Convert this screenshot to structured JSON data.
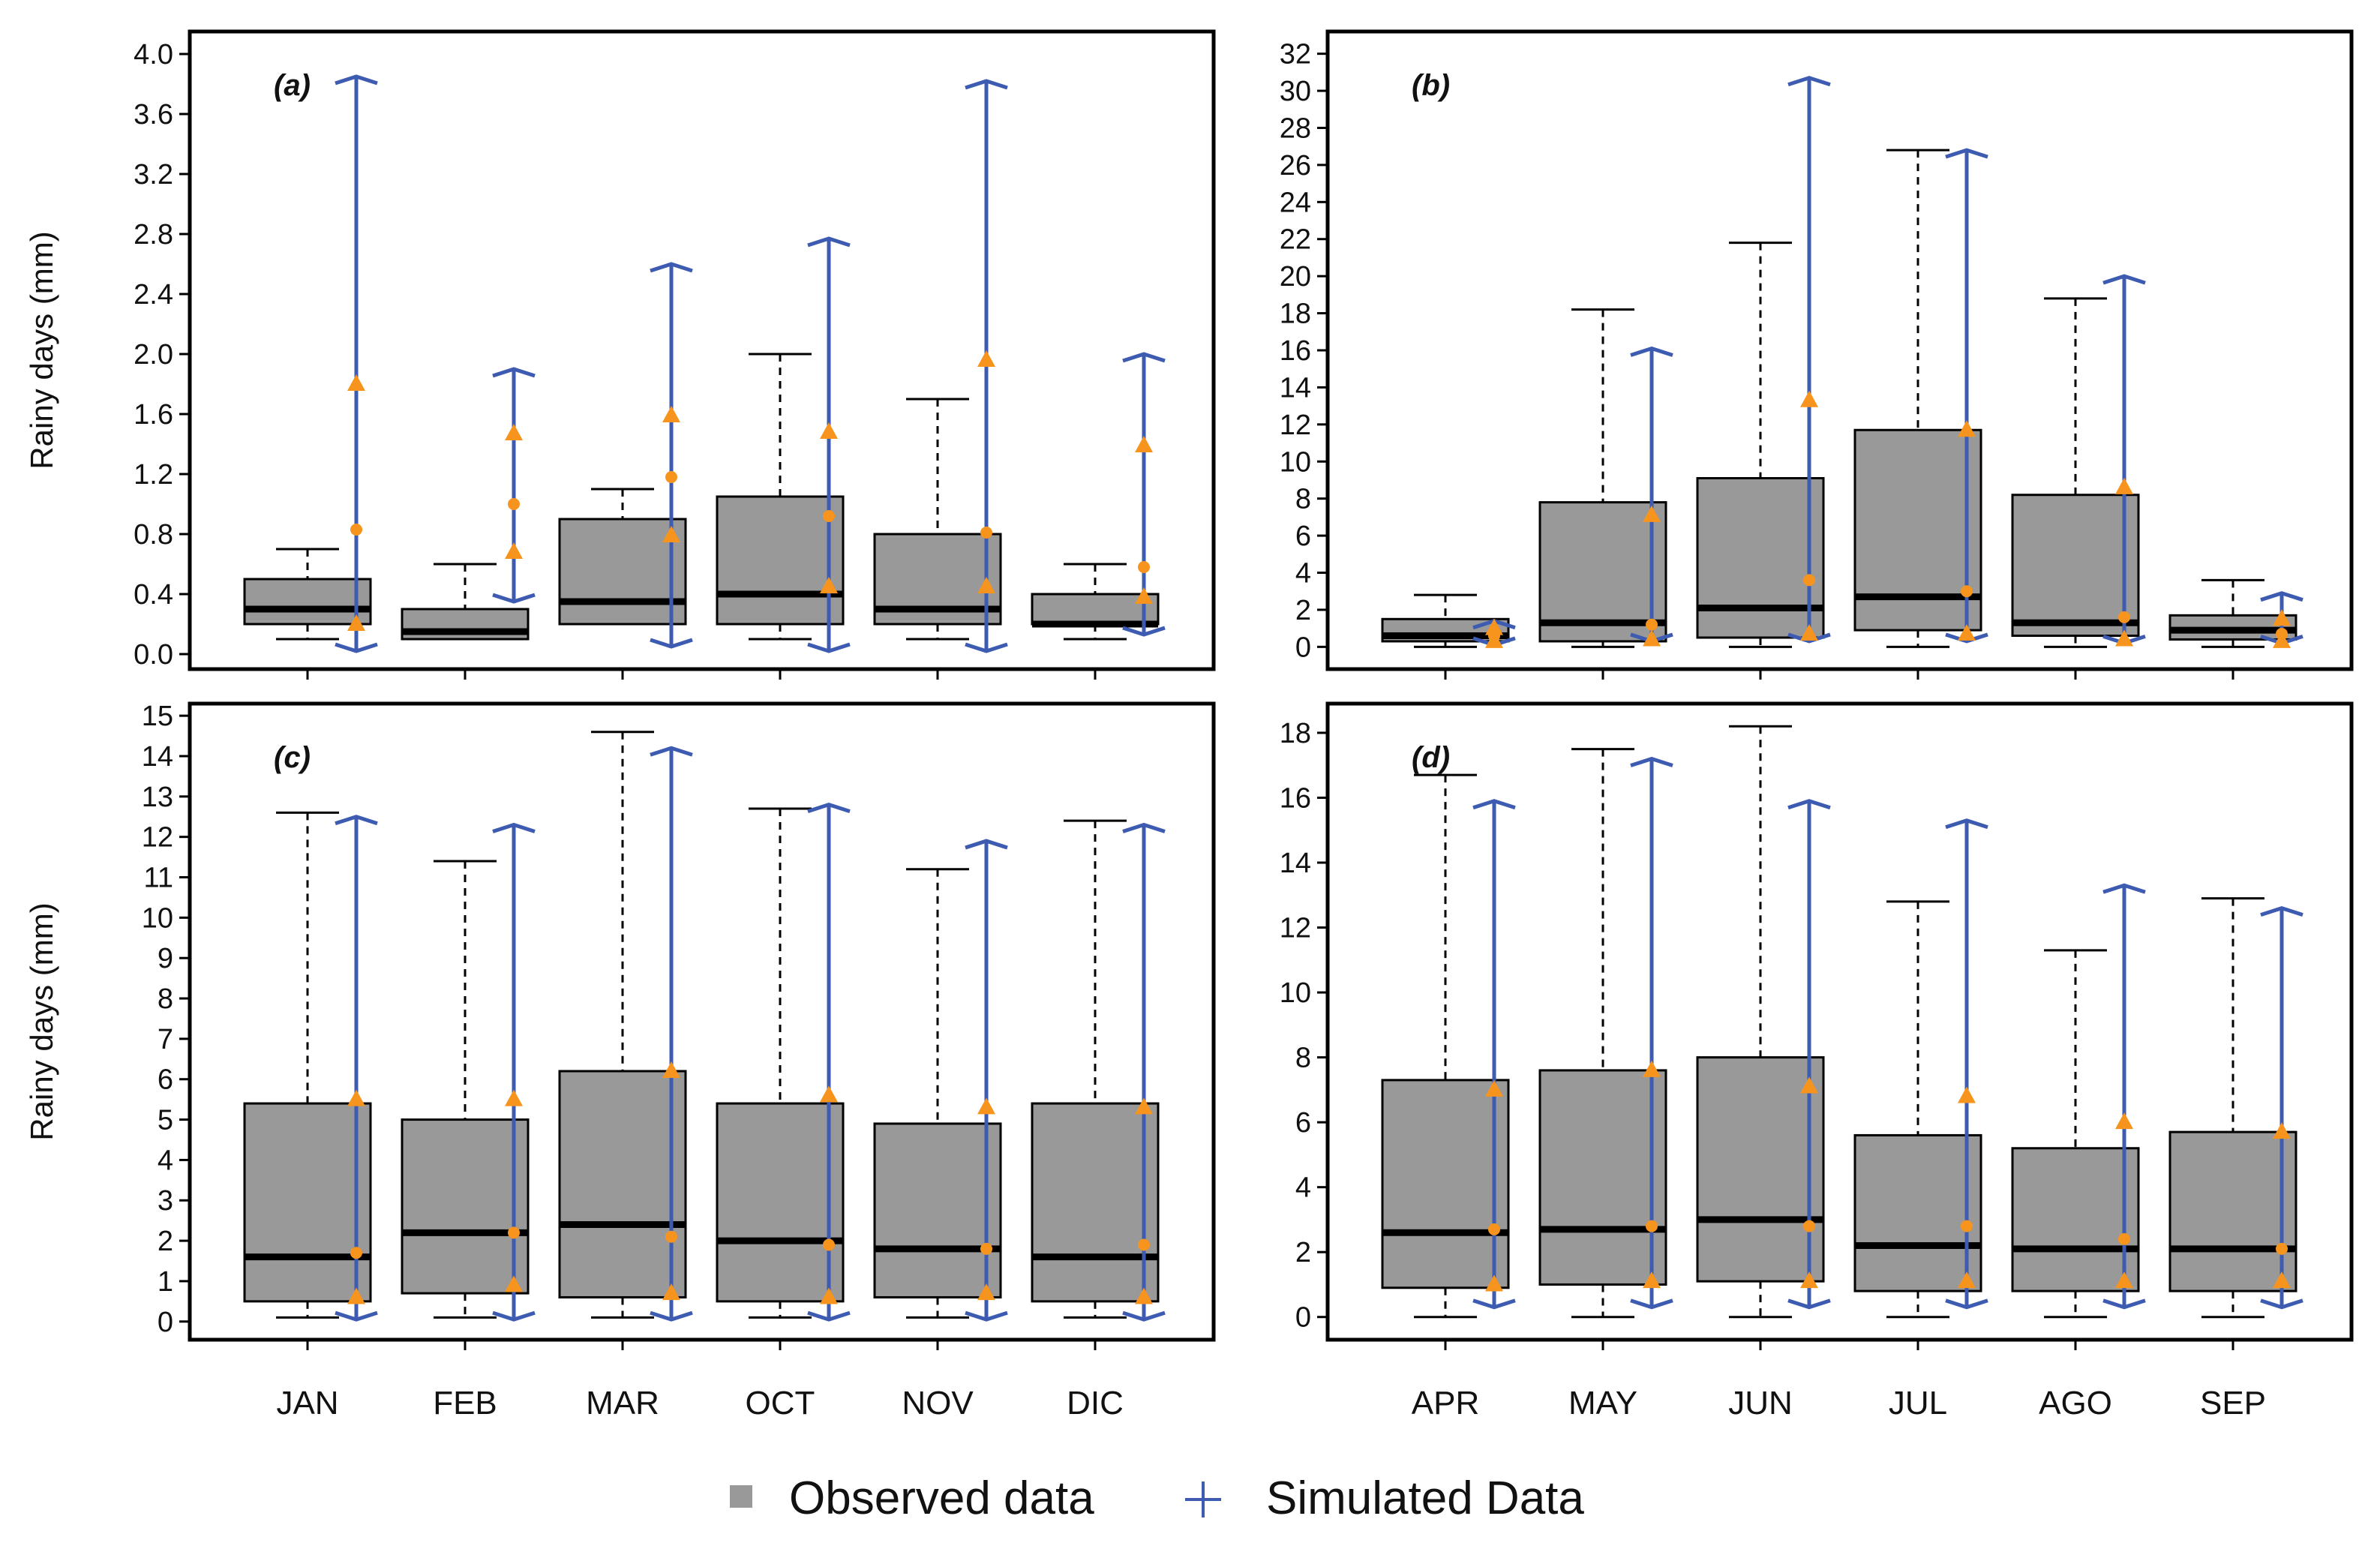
{
  "legend": {
    "observed_label": "Observed data",
    "simulated_label": "Simulated Data"
  },
  "colors": {
    "box_fill": "#999999",
    "whisker_line": "#000000",
    "simulated_line": "#3d5bb0",
    "simulated_marker": "#f7941d",
    "frame": "#000000"
  },
  "chart_data": [
    {
      "panel": "(a)",
      "type": "boxplot",
      "ylabel": "Rainy days (mm)",
      "ylim": [
        -0.1,
        4.15
      ],
      "yticks": [
        "0.0",
        "0.4",
        "0.8",
        "1.2",
        "1.6",
        "2.0",
        "2.4",
        "2.8",
        "3.2",
        "3.6",
        "4.0"
      ],
      "ytick_values": [
        0,
        0.4,
        0.8,
        1.2,
        1.6,
        2.0,
        2.4,
        2.8,
        3.2,
        3.6,
        4.0
      ],
      "categories": [
        "JAN",
        "FEB",
        "MAR",
        "OCT",
        "NOV",
        "DIC"
      ],
      "observed": [
        {
          "min": 0.1,
          "q1": 0.2,
          "median": 0.3,
          "q3": 0.5,
          "max": 0.7
        },
        {
          "min": 0.1,
          "q1": 0.1,
          "median": 0.15,
          "q3": 0.3,
          "max": 0.6
        },
        {
          "min": 0.2,
          "q1": 0.2,
          "median": 0.35,
          "q3": 0.9,
          "max": 1.1
        },
        {
          "min": 0.1,
          "q1": 0.2,
          "median": 0.4,
          "q3": 1.05,
          "max": 2.0
        },
        {
          "min": 0.1,
          "q1": 0.2,
          "median": 0.3,
          "q3": 0.8,
          "max": 1.7
        },
        {
          "min": 0.1,
          "q1": 0.2,
          "median": 0.2,
          "q3": 0.4,
          "max": 0.6
        }
      ],
      "simulated": [
        {
          "min": 0.02,
          "low": 0.2,
          "mid": 0.83,
          "high": 1.8,
          "max": 3.85
        },
        {
          "min": 0.35,
          "low": 0.68,
          "mid": 1.0,
          "high": 1.47,
          "max": 1.9
        },
        {
          "min": 0.05,
          "low": 0.79,
          "mid": 1.18,
          "high": 1.59,
          "max": 2.6
        },
        {
          "min": 0.02,
          "low": 0.45,
          "mid": 0.92,
          "high": 1.48,
          "max": 2.77
        },
        {
          "min": 0.02,
          "low": 0.45,
          "mid": 0.81,
          "high": 1.96,
          "max": 3.82
        },
        {
          "min": 0.13,
          "low": 0.38,
          "mid": 0.58,
          "high": 1.39,
          "max": 2.0
        }
      ]
    },
    {
      "panel": "(b)",
      "type": "boxplot",
      "ylabel": "",
      "ylim": [
        -1.2,
        33.2
      ],
      "yticks": [
        "0",
        "2",
        "4",
        "6",
        "8",
        "10",
        "12",
        "14",
        "16",
        "18",
        "20",
        "22",
        "24",
        "26",
        "28",
        "30",
        "32"
      ],
      "ytick_values": [
        0,
        2,
        4,
        6,
        8,
        10,
        12,
        14,
        16,
        18,
        20,
        22,
        24,
        26,
        28,
        30,
        32
      ],
      "categories": [
        "APR",
        "MAY",
        "JUN",
        "JUL",
        "AGO",
        "SEP"
      ],
      "observed": [
        {
          "min": 0,
          "q1": 0.3,
          "median": 0.6,
          "q3": 1.5,
          "max": 2.8
        },
        {
          "min": 0,
          "q1": 0.3,
          "median": 1.3,
          "q3": 7.8,
          "max": 18.2
        },
        {
          "min": 0,
          "q1": 0.5,
          "median": 2.1,
          "q3": 9.1,
          "max": 21.8
        },
        {
          "min": 0,
          "q1": 0.9,
          "median": 2.7,
          "q3": 11.7,
          "max": 26.8
        },
        {
          "min": 0,
          "q1": 0.6,
          "median": 1.3,
          "q3": 8.2,
          "max": 18.8
        },
        {
          "min": 0,
          "q1": 0.4,
          "median": 0.9,
          "q3": 1.7,
          "max": 3.6
        }
      ],
      "simulated": [
        {
          "min": 0.1,
          "low": 0.3,
          "mid": 0.6,
          "high": 1.0,
          "max": 1.4
        },
        {
          "min": 0.3,
          "low": 0.4,
          "mid": 1.2,
          "high": 7.1,
          "max": 16.1
        },
        {
          "min": 0.3,
          "low": 0.7,
          "mid": 3.6,
          "high": 13.3,
          "max": 30.7
        },
        {
          "min": 0.3,
          "low": 0.7,
          "mid": 3.0,
          "high": 11.7,
          "max": 26.8
        },
        {
          "min": 0.2,
          "low": 0.4,
          "mid": 1.6,
          "high": 8.6,
          "max": 20.0
        },
        {
          "min": 0.2,
          "low": 0.3,
          "mid": 0.7,
          "high": 1.5,
          "max": 2.9
        }
      ]
    },
    {
      "panel": "(c)",
      "type": "boxplot",
      "ylabel": "Rainy days (mm)",
      "ylim": [
        -0.45,
        15.3
      ],
      "yticks": [
        "0",
        "1",
        "2",
        "3",
        "4",
        "5",
        "6",
        "7",
        "8",
        "9",
        "10",
        "11",
        "12",
        "13",
        "14",
        "15"
      ],
      "ytick_values": [
        0,
        1,
        2,
        3,
        4,
        5,
        6,
        7,
        8,
        9,
        10,
        11,
        12,
        13,
        14,
        15
      ],
      "categories": [
        "JAN",
        "FEB",
        "MAR",
        "OCT",
        "NOV",
        "DIC"
      ],
      "observed": [
        {
          "min": 0.1,
          "q1": 0.5,
          "median": 1.6,
          "q3": 5.4,
          "max": 12.6
        },
        {
          "min": 0.1,
          "q1": 0.7,
          "median": 2.2,
          "q3": 5.0,
          "max": 11.4
        },
        {
          "min": 0.1,
          "q1": 0.6,
          "median": 2.4,
          "q3": 6.2,
          "max": 14.6
        },
        {
          "min": 0.1,
          "q1": 0.5,
          "median": 2.0,
          "q3": 5.4,
          "max": 12.7
        },
        {
          "min": 0.1,
          "q1": 0.6,
          "median": 1.8,
          "q3": 4.9,
          "max": 11.2
        },
        {
          "min": 0.1,
          "q1": 0.5,
          "median": 1.6,
          "q3": 5.4,
          "max": 12.4
        }
      ],
      "simulated": [
        {
          "min": 0.05,
          "low": 0.6,
          "mid": 1.7,
          "high": 5.5,
          "max": 12.5
        },
        {
          "min": 0.05,
          "low": 0.9,
          "mid": 2.2,
          "high": 5.5,
          "max": 12.3
        },
        {
          "min": 0.05,
          "low": 0.7,
          "mid": 2.1,
          "high": 6.2,
          "max": 14.2
        },
        {
          "min": 0.05,
          "low": 0.6,
          "mid": 1.9,
          "high": 5.6,
          "max": 12.8
        },
        {
          "min": 0.05,
          "low": 0.7,
          "mid": 1.8,
          "high": 5.3,
          "max": 11.9
        },
        {
          "min": 0.05,
          "low": 0.6,
          "mid": 1.9,
          "high": 5.3,
          "max": 12.3
        }
      ]
    },
    {
      "panel": "(d)",
      "type": "boxplot",
      "ylabel": "",
      "ylim": [
        -0.7,
        18.9
      ],
      "yticks": [
        "0",
        "2",
        "4",
        "6",
        "8",
        "10",
        "12",
        "14",
        "16",
        "18"
      ],
      "ytick_values": [
        0,
        2,
        4,
        6,
        8,
        10,
        12,
        14,
        16,
        18
      ],
      "categories": [
        "APR",
        "MAY",
        "JUN",
        "JUL",
        "AGO",
        "SEP"
      ],
      "observed": [
        {
          "min": 0,
          "q1": 0.9,
          "median": 2.6,
          "q3": 7.3,
          "max": 16.7
        },
        {
          "min": 0,
          "q1": 1.0,
          "median": 2.7,
          "q3": 7.6,
          "max": 17.5
        },
        {
          "min": 0,
          "q1": 1.1,
          "median": 3.0,
          "q3": 8.0,
          "max": 18.2
        },
        {
          "min": 0,
          "q1": 0.8,
          "median": 2.2,
          "q3": 5.6,
          "max": 12.8
        },
        {
          "min": 0,
          "q1": 0.8,
          "median": 2.1,
          "q3": 5.2,
          "max": 11.3
        },
        {
          "min": 0,
          "q1": 0.8,
          "median": 2.1,
          "q3": 5.7,
          "max": 12.9
        }
      ],
      "simulated": [
        {
          "min": 0.3,
          "low": 1.0,
          "mid": 2.7,
          "high": 7.0,
          "max": 15.9
        },
        {
          "min": 0.3,
          "low": 1.1,
          "mid": 2.8,
          "high": 7.6,
          "max": 17.2
        },
        {
          "min": 0.3,
          "low": 1.1,
          "mid": 2.8,
          "high": 7.1,
          "max": 15.9
        },
        {
          "min": 0.3,
          "low": 1.1,
          "mid": 2.8,
          "high": 6.8,
          "max": 15.3
        },
        {
          "min": 0.3,
          "low": 1.1,
          "mid": 2.4,
          "high": 6.0,
          "max": 13.3
        },
        {
          "min": 0.3,
          "low": 1.1,
          "mid": 2.1,
          "high": 5.7,
          "max": 12.6
        }
      ]
    }
  ]
}
